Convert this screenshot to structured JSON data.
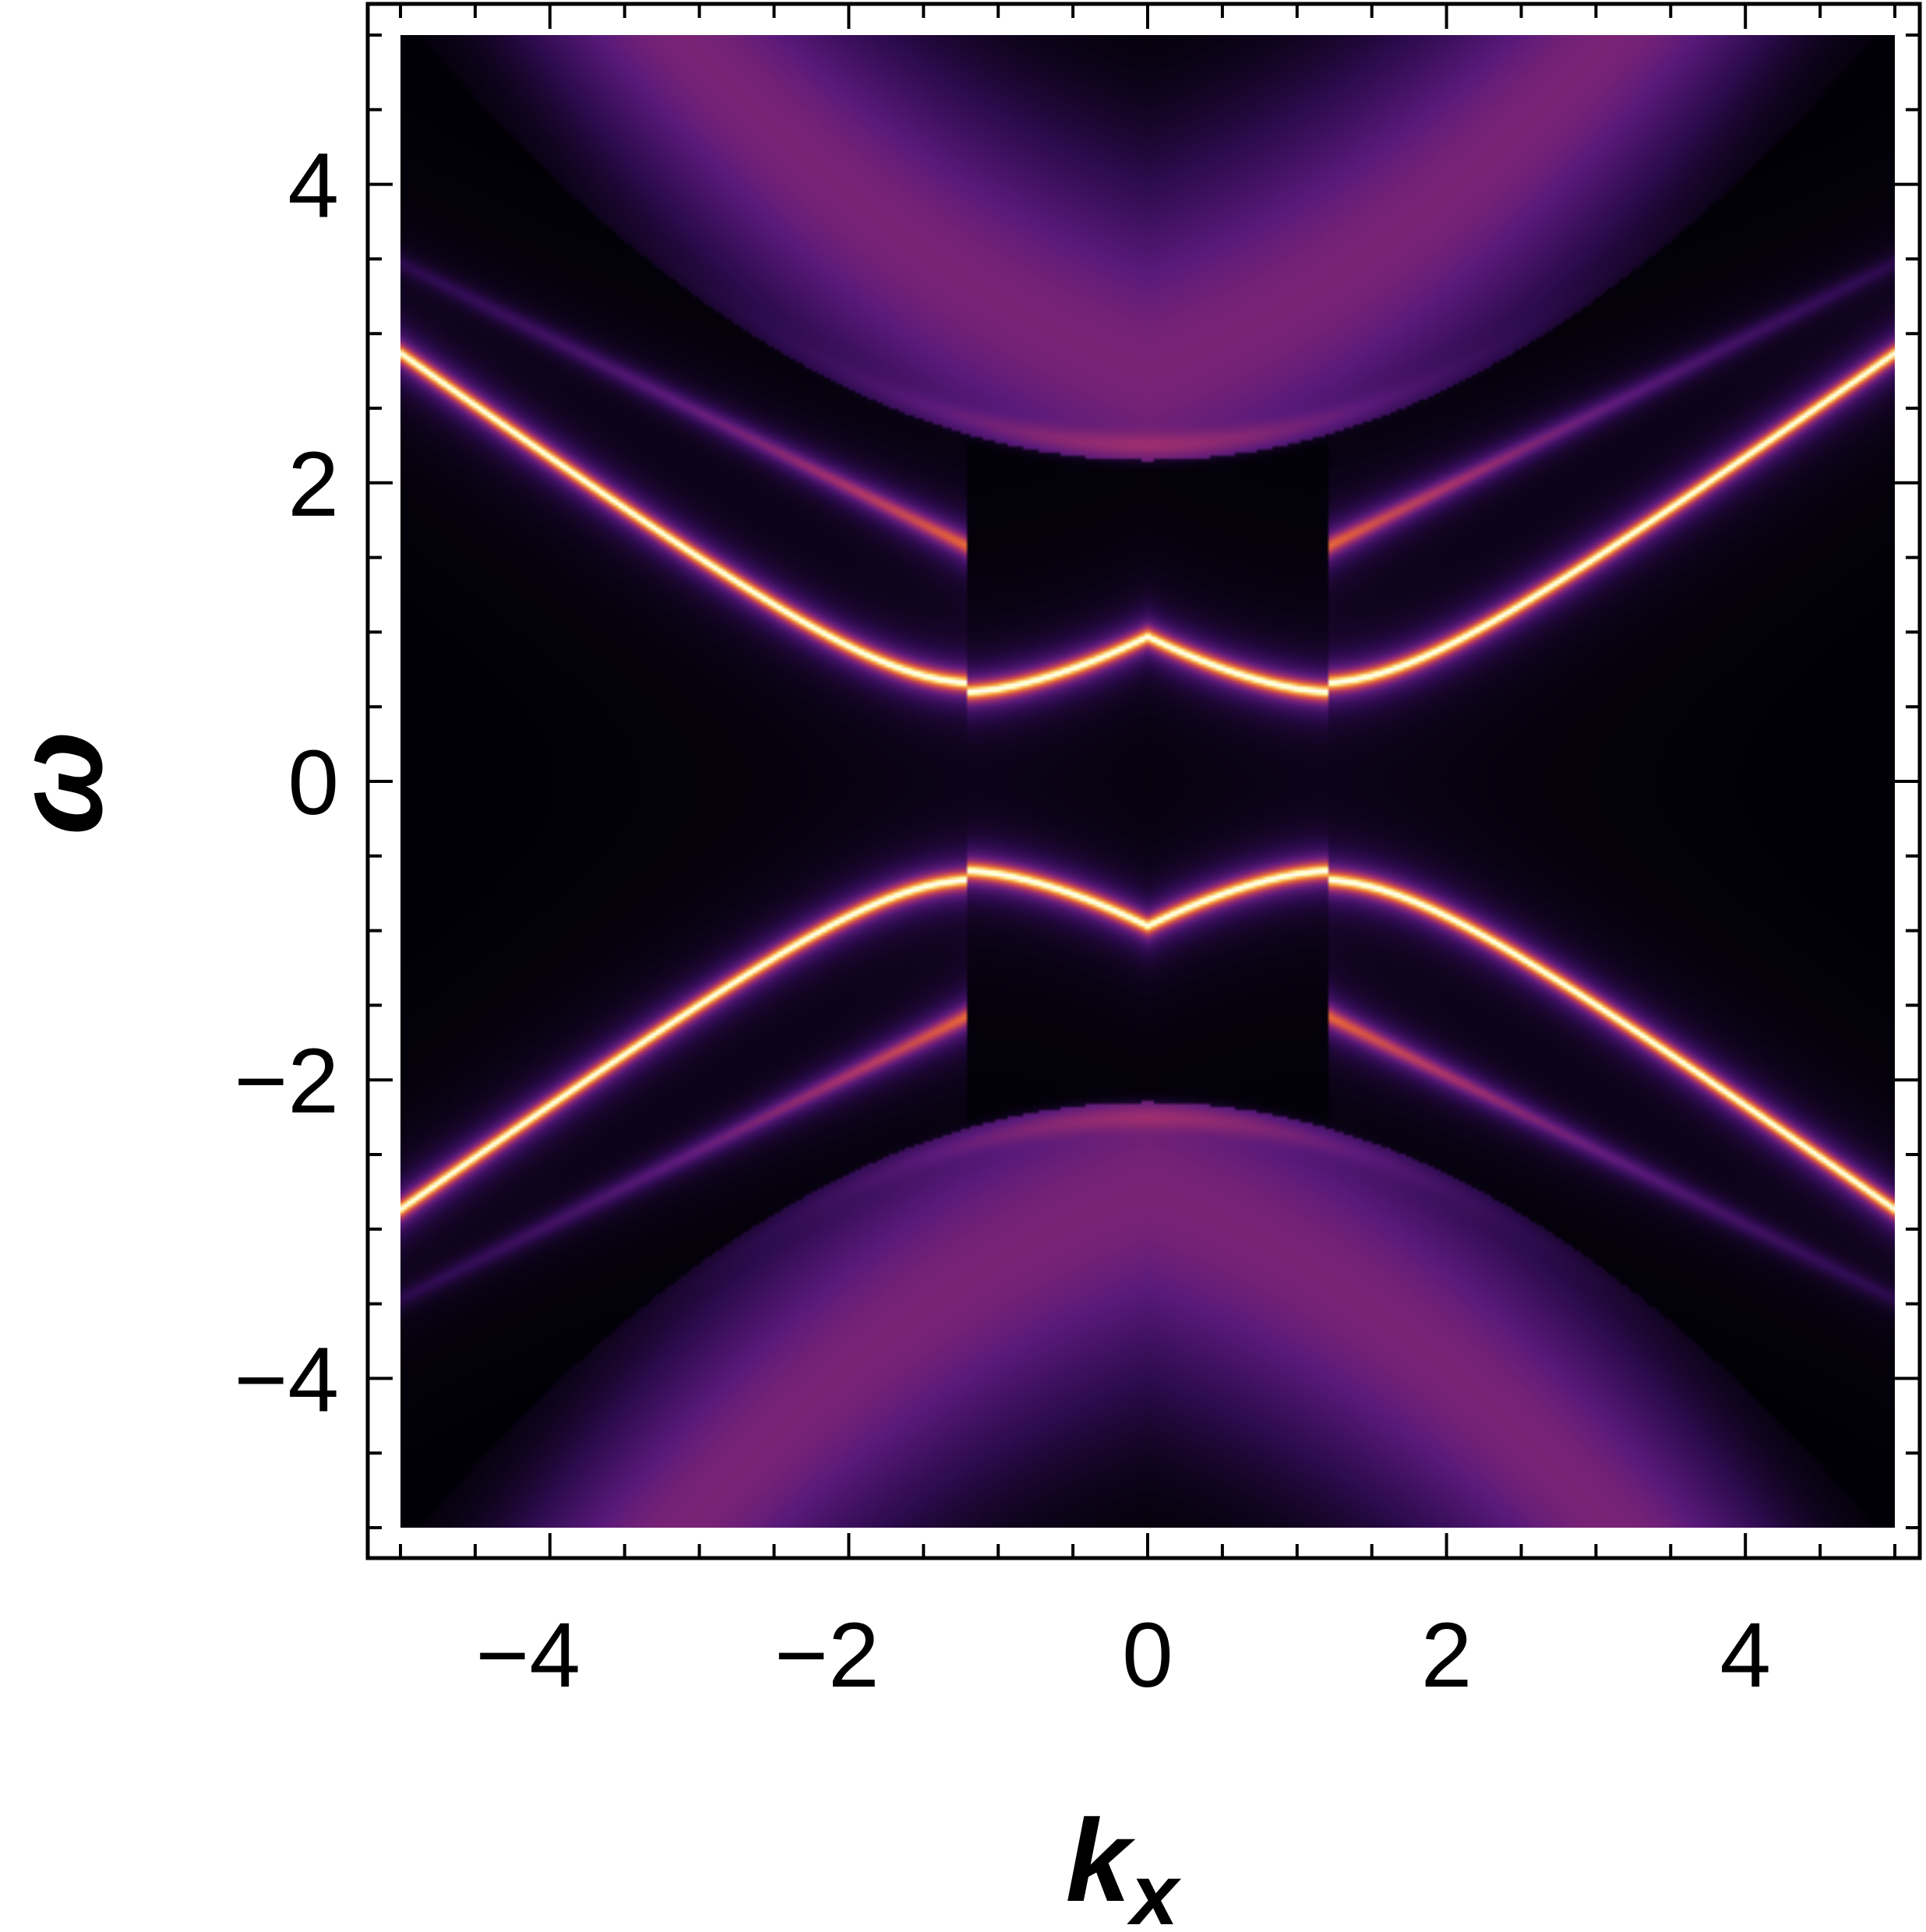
{
  "chart_data": {
    "type": "heatmap",
    "title": "",
    "xlabel": "k",
    "xlabel_subscript": "x",
    "ylabel": "ω",
    "xlim": [
      -5,
      5
    ],
    "ylim": [
      -5,
      5
    ],
    "x_ticks": [
      -4,
      -2,
      0,
      2,
      4
    ],
    "y_ticks": [
      -4,
      -2,
      0,
      2,
      4
    ],
    "x_tick_labels": [
      "−4",
      "−2",
      "0",
      "2",
      "4"
    ],
    "y_tick_labels": [
      "−4",
      "−2",
      "0",
      "2",
      "4"
    ],
    "minor_tick_step": 0.5,
    "grid": false,
    "colormap": [
      "#000004",
      "#2d0b4e",
      "#5a1a7a",
      "#a3306e",
      "#e15d3c",
      "#fca636",
      "#fcffa4",
      "#ffffff"
    ],
    "bands": [
      {
        "description": "bright hybridized bands",
        "kx": [
          -5,
          -4,
          -3,
          -2,
          -1.5,
          -1.2,
          -0.8,
          -0.4,
          0,
          0.4,
          0.8,
          1.2,
          1.5,
          2,
          3,
          4,
          5
        ],
        "omega_upper": [
          3.4,
          2.8,
          2.1,
          1.3,
          0.85,
          0.6,
          0.62,
          0.8,
          0.97,
          0.8,
          0.62,
          0.6,
          0.85,
          1.3,
          2.1,
          2.8,
          3.4
        ],
        "omega_lower": [
          -3.4,
          -2.8,
          -2.1,
          -1.3,
          -0.85,
          -0.6,
          -0.62,
          -0.8,
          -0.97,
          -0.8,
          -0.62,
          -0.6,
          -0.85,
          -1.3,
          -2.1,
          -2.8,
          -3.4
        ]
      },
      {
        "description": "crossing linear bands",
        "crossing_points": [
          [
            0,
            0.97
          ],
          [
            0,
            -0.97
          ]
        ],
        "slope": 0.5
      },
      {
        "description": "faint continuum edge",
        "omega_min_at_kx0": 2.25
      }
    ]
  }
}
